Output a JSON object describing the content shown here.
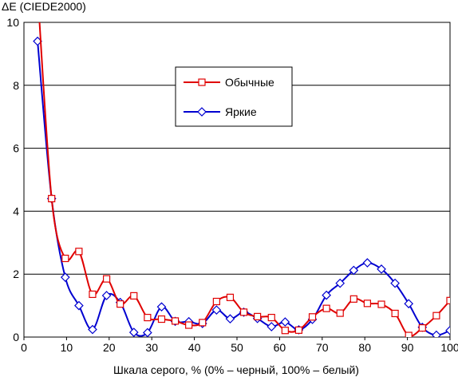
{
  "chart_data": {
    "type": "line",
    "title": "ΔE (CIEDE2000)",
    "xlabel": "Шкала серого, % (0% – черный, 100% – белый)",
    "ylabel": "",
    "xlim": [
      0,
      100
    ],
    "ylim": [
      0,
      10
    ],
    "xticks": [
      "0",
      "10",
      "20",
      "30",
      "40",
      "50",
      "60",
      "70",
      "80",
      "90",
      "100"
    ],
    "yticks": [
      "0",
      "2",
      "4",
      "6",
      "8",
      "10"
    ],
    "grid": "horizontal",
    "legend_position": "upper-middle",
    "series": [
      {
        "name": "Обычные",
        "color": "#e00000",
        "marker": "square",
        "x": [
          3.2,
          6.5,
          9.7,
          12.9,
          16.1,
          19.4,
          22.6,
          25.8,
          29.0,
          32.3,
          35.5,
          38.7,
          41.9,
          45.2,
          48.4,
          51.6,
          54.8,
          58.1,
          61.3,
          64.5,
          67.7,
          71.0,
          74.2,
          77.4,
          80.6,
          83.9,
          87.1,
          90.3,
          93.5,
          96.8,
          100.0
        ],
        "y": [
          11.0,
          4.4,
          2.5,
          2.72,
          1.36,
          1.85,
          1.05,
          1.31,
          0.62,
          0.57,
          0.51,
          0.38,
          0.46,
          1.13,
          1.26,
          0.79,
          0.65,
          0.62,
          0.21,
          0.22,
          0.64,
          0.91,
          0.76,
          1.21,
          1.07,
          1.04,
          0.75,
          0.05,
          0.29,
          0.68,
          1.16
        ]
      },
      {
        "name": "Яркие",
        "color": "#0000d0",
        "marker": "diamond",
        "x": [
          3.2,
          6.5,
          9.7,
          12.9,
          16.1,
          19.4,
          22.6,
          25.8,
          29.0,
          32.3,
          35.5,
          38.7,
          41.9,
          45.2,
          48.4,
          51.6,
          54.8,
          58.1,
          61.3,
          64.5,
          67.7,
          71.0,
          74.2,
          77.4,
          80.6,
          83.9,
          87.1,
          90.3,
          93.5,
          96.8,
          100.0
        ],
        "y": [
          9.4,
          4.4,
          1.9,
          1.0,
          0.24,
          1.32,
          1.1,
          0.15,
          0.14,
          0.96,
          0.5,
          0.49,
          0.43,
          0.86,
          0.58,
          0.79,
          0.59,
          0.33,
          0.48,
          0.23,
          0.56,
          1.33,
          1.71,
          2.12,
          2.36,
          2.16,
          1.71,
          1.06,
          0.31,
          0.06,
          0.21
        ]
      }
    ]
  }
}
